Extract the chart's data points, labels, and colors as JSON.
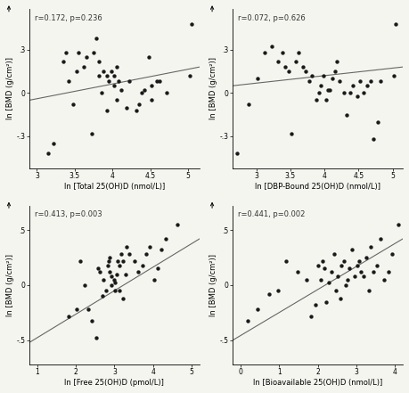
{
  "panels": [
    {
      "annotation": "r=0.172, p=0.236",
      "xlabel": "ln [Total 25(OH)D (nmol/L)]",
      "ylabel": "ln [BMD (g/cm²)]",
      "xlim": [
        2.9,
        5.15
      ],
      "ylim": [
        -0.52,
        0.58
      ],
      "xticks": [
        3.0,
        3.5,
        4.0,
        4.5,
        5.0
      ],
      "xtick_labels": [
        "3",
        "3.5",
        "4",
        "4.5",
        "5"
      ],
      "yticks": [
        -0.3,
        0.0,
        0.3
      ],
      "ytick_labels": [
        "-.3",
        "0",
        ".3"
      ],
      "line_x": [
        2.9,
        5.15
      ],
      "line_y": [
        -0.05,
        0.18
      ],
      "scatter_x": [
        3.15,
        3.22,
        3.35,
        3.38,
        3.42,
        3.48,
        3.52,
        3.55,
        3.62,
        3.65,
        3.72,
        3.75,
        3.78,
        3.82,
        3.82,
        3.85,
        3.88,
        3.92,
        3.92,
        3.95,
        3.98,
        4.02,
        4.02,
        4.05,
        4.05,
        4.08,
        4.12,
        4.18,
        4.22,
        4.32,
        4.35,
        4.38,
        4.42,
        4.48,
        4.52,
        4.52,
        4.58,
        4.62,
        4.72,
        5.02,
        5.05
      ],
      "scatter_y": [
        -0.42,
        -0.35,
        0.22,
        0.28,
        0.08,
        -0.08,
        0.15,
        0.28,
        0.18,
        0.25,
        -0.28,
        0.28,
        0.38,
        0.12,
        0.22,
        0.0,
        0.15,
        -0.12,
        0.12,
        0.08,
        0.15,
        0.05,
        0.12,
        0.18,
        -0.05,
        0.08,
        0.02,
        -0.1,
        0.08,
        -0.12,
        -0.08,
        0.0,
        0.02,
        0.25,
        0.05,
        -0.05,
        0.08,
        0.08,
        0.0,
        0.12,
        0.48
      ]
    },
    {
      "annotation": "r=0.072, p=0.626",
      "xlabel": "ln [DBP-Bound 25(OH)D (nmol/L)]",
      "ylabel": "ln [BMD (g/cm²)]",
      "xlim": [
        2.65,
        5.15
      ],
      "ylim": [
        -0.52,
        0.58
      ],
      "xticks": [
        3.0,
        3.5,
        4.0,
        4.5,
        5.0
      ],
      "xtick_labels": [
        "3",
        "3.5",
        "4",
        "4.5",
        "5"
      ],
      "yticks": [
        -0.3,
        0.0,
        0.3
      ],
      "ytick_labels": [
        "-.3",
        "0",
        ".3"
      ],
      "line_x": [
        2.65,
        5.15
      ],
      "line_y": [
        0.05,
        0.18
      ],
      "scatter_x": [
        2.72,
        2.88,
        3.02,
        3.12,
        3.22,
        3.32,
        3.38,
        3.42,
        3.48,
        3.52,
        3.58,
        3.62,
        3.68,
        3.72,
        3.78,
        3.82,
        3.88,
        3.92,
        3.95,
        3.98,
        4.02,
        4.05,
        4.08,
        4.12,
        4.15,
        4.18,
        4.22,
        4.28,
        4.32,
        4.38,
        4.42,
        4.48,
        4.52,
        4.58,
        4.62,
        4.68,
        4.72,
        4.78,
        4.82,
        5.02,
        5.05
      ],
      "scatter_y": [
        -0.42,
        -0.08,
        0.1,
        0.28,
        0.32,
        0.22,
        0.28,
        0.18,
        0.15,
        -0.28,
        0.22,
        0.28,
        0.18,
        0.15,
        0.08,
        0.12,
        -0.05,
        0.0,
        0.05,
        0.12,
        -0.05,
        0.02,
        0.02,
        0.1,
        0.15,
        0.22,
        0.08,
        0.0,
        -0.15,
        0.0,
        0.05,
        -0.02,
        0.08,
        0.0,
        0.05,
        0.08,
        -0.32,
        -0.2,
        0.08,
        0.12,
        0.48
      ]
    },
    {
      "annotation": "r=0.413, p=0.003",
      "xlabel": "ln [Free 25(OH)D (pmol/L)]",
      "ylabel": "ln [BMD (g/cm²)]",
      "xlim": [
        0.8,
        5.2
      ],
      "ylim": [
        -0.72,
        0.72
      ],
      "xticks": [
        1,
        2,
        3,
        4,
        5
      ],
      "xtick_labels": [
        "1",
        "2",
        "3",
        "4",
        "5"
      ],
      "yticks": [
        -0.5,
        0.0,
        0.5
      ],
      "ytick_labels": [
        "-.5",
        "0",
        ".5"
      ],
      "line_x": [
        0.8,
        5.2
      ],
      "line_y": [
        -0.52,
        0.42
      ],
      "scatter_x": [
        1.82,
        2.02,
        2.12,
        2.22,
        2.32,
        2.42,
        2.52,
        2.58,
        2.62,
        2.68,
        2.72,
        2.78,
        2.82,
        2.85,
        2.88,
        2.88,
        2.92,
        2.92,
        2.98,
        3.02,
        3.02,
        3.05,
        3.08,
        3.12,
        3.12,
        3.18,
        3.22,
        3.22,
        3.28,
        3.32,
        3.38,
        3.52,
        3.62,
        3.72,
        3.82,
        3.92,
        4.02,
        4.12,
        4.22,
        4.32,
        4.62
      ],
      "scatter_y": [
        -0.28,
        -0.22,
        0.22,
        0.0,
        -0.22,
        -0.32,
        -0.48,
        0.15,
        0.12,
        -0.1,
        0.05,
        -0.05,
        0.18,
        0.22,
        0.12,
        0.25,
        0.0,
        0.08,
        0.05,
        -0.05,
        0.02,
        0.1,
        0.22,
        -0.05,
        0.18,
        0.28,
        -0.12,
        0.22,
        0.1,
        0.35,
        0.28,
        0.22,
        0.12,
        0.18,
        0.28,
        0.35,
        0.05,
        0.15,
        0.32,
        0.42,
        0.55
      ]
    },
    {
      "annotation": "r=0.441, p=0.002",
      "xlabel": "ln [Bioavailable 25(OH)D (nmol/L)]",
      "ylabel": "ln [BMD (g/cm²)]",
      "xlim": [
        -0.2,
        4.2
      ],
      "ylim": [
        -0.72,
        0.72
      ],
      "xticks": [
        0,
        1,
        2,
        3,
        4
      ],
      "xtick_labels": [
        "0",
        "1",
        "2",
        "3",
        "4"
      ],
      "yticks": [
        -0.5,
        0.0,
        0.5
      ],
      "ytick_labels": [
        "-.5",
        "0",
        ".5"
      ],
      "line_x": [
        -0.2,
        4.2
      ],
      "line_y": [
        -0.5,
        0.42
      ],
      "scatter_x": [
        0.18,
        0.45,
        0.75,
        0.98,
        1.18,
        1.48,
        1.72,
        1.82,
        1.95,
        2.02,
        2.08,
        2.12,
        2.18,
        2.22,
        2.28,
        2.35,
        2.42,
        2.48,
        2.52,
        2.58,
        2.62,
        2.68,
        2.72,
        2.78,
        2.82,
        2.88,
        2.95,
        3.02,
        3.08,
        3.12,
        3.18,
        3.25,
        3.32,
        3.38,
        3.45,
        3.52,
        3.62,
        3.72,
        3.82,
        3.92,
        4.08
      ],
      "scatter_y": [
        -0.32,
        -0.22,
        -0.08,
        -0.05,
        0.22,
        0.12,
        0.05,
        -0.28,
        -0.18,
        0.18,
        0.05,
        0.22,
        0.15,
        -0.15,
        0.02,
        0.12,
        0.28,
        -0.05,
        0.08,
        -0.12,
        0.18,
        0.22,
        0.0,
        0.05,
        0.15,
        0.32,
        0.08,
        0.18,
        0.22,
        0.12,
        0.08,
        0.25,
        -0.05,
        0.35,
        0.12,
        0.18,
        0.42,
        0.05,
        0.12,
        0.28,
        0.55
      ]
    }
  ],
  "dot_color": "#1a1a1a",
  "line_color": "#666666",
  "dot_size": 10,
  "annotation_fontsize": 6.0,
  "axis_label_fontsize": 6.0,
  "tick_fontsize": 5.5,
  "background_color": "#f5f5f0"
}
